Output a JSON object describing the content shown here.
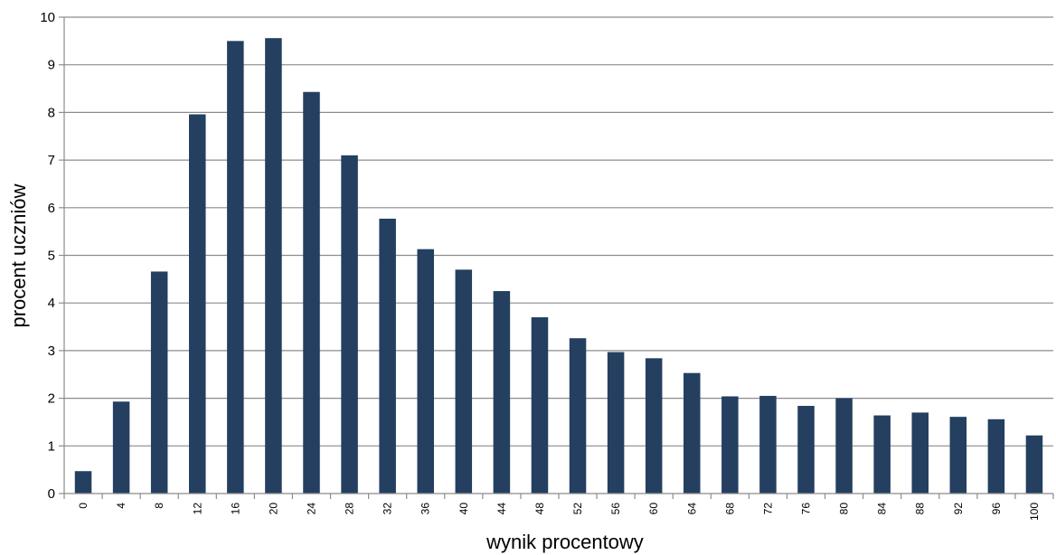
{
  "chart_data": {
    "type": "bar",
    "xlabel": "wynik procentowy",
    "ylabel": "procent uczniów",
    "ylim": [
      0,
      10
    ],
    "yticks": [
      0,
      1,
      2,
      3,
      4,
      5,
      6,
      7,
      8,
      9,
      10
    ],
    "grid": true,
    "bar_color": "#243F60",
    "categories": [
      "0",
      "4",
      "8",
      "12",
      "16",
      "20",
      "24",
      "28",
      "32",
      "36",
      "40",
      "44",
      "48",
      "52",
      "56",
      "60",
      "64",
      "68",
      "72",
      "76",
      "80",
      "84",
      "88",
      "92",
      "96",
      "100"
    ],
    "values": [
      0.47,
      1.93,
      4.66,
      7.96,
      9.5,
      9.56,
      8.43,
      7.1,
      5.77,
      5.13,
      4.7,
      4.25,
      3.7,
      3.26,
      2.97,
      2.84,
      2.53,
      2.04,
      2.05,
      1.84,
      2.0,
      1.64,
      1.7,
      1.61,
      1.56,
      1.22
    ]
  }
}
